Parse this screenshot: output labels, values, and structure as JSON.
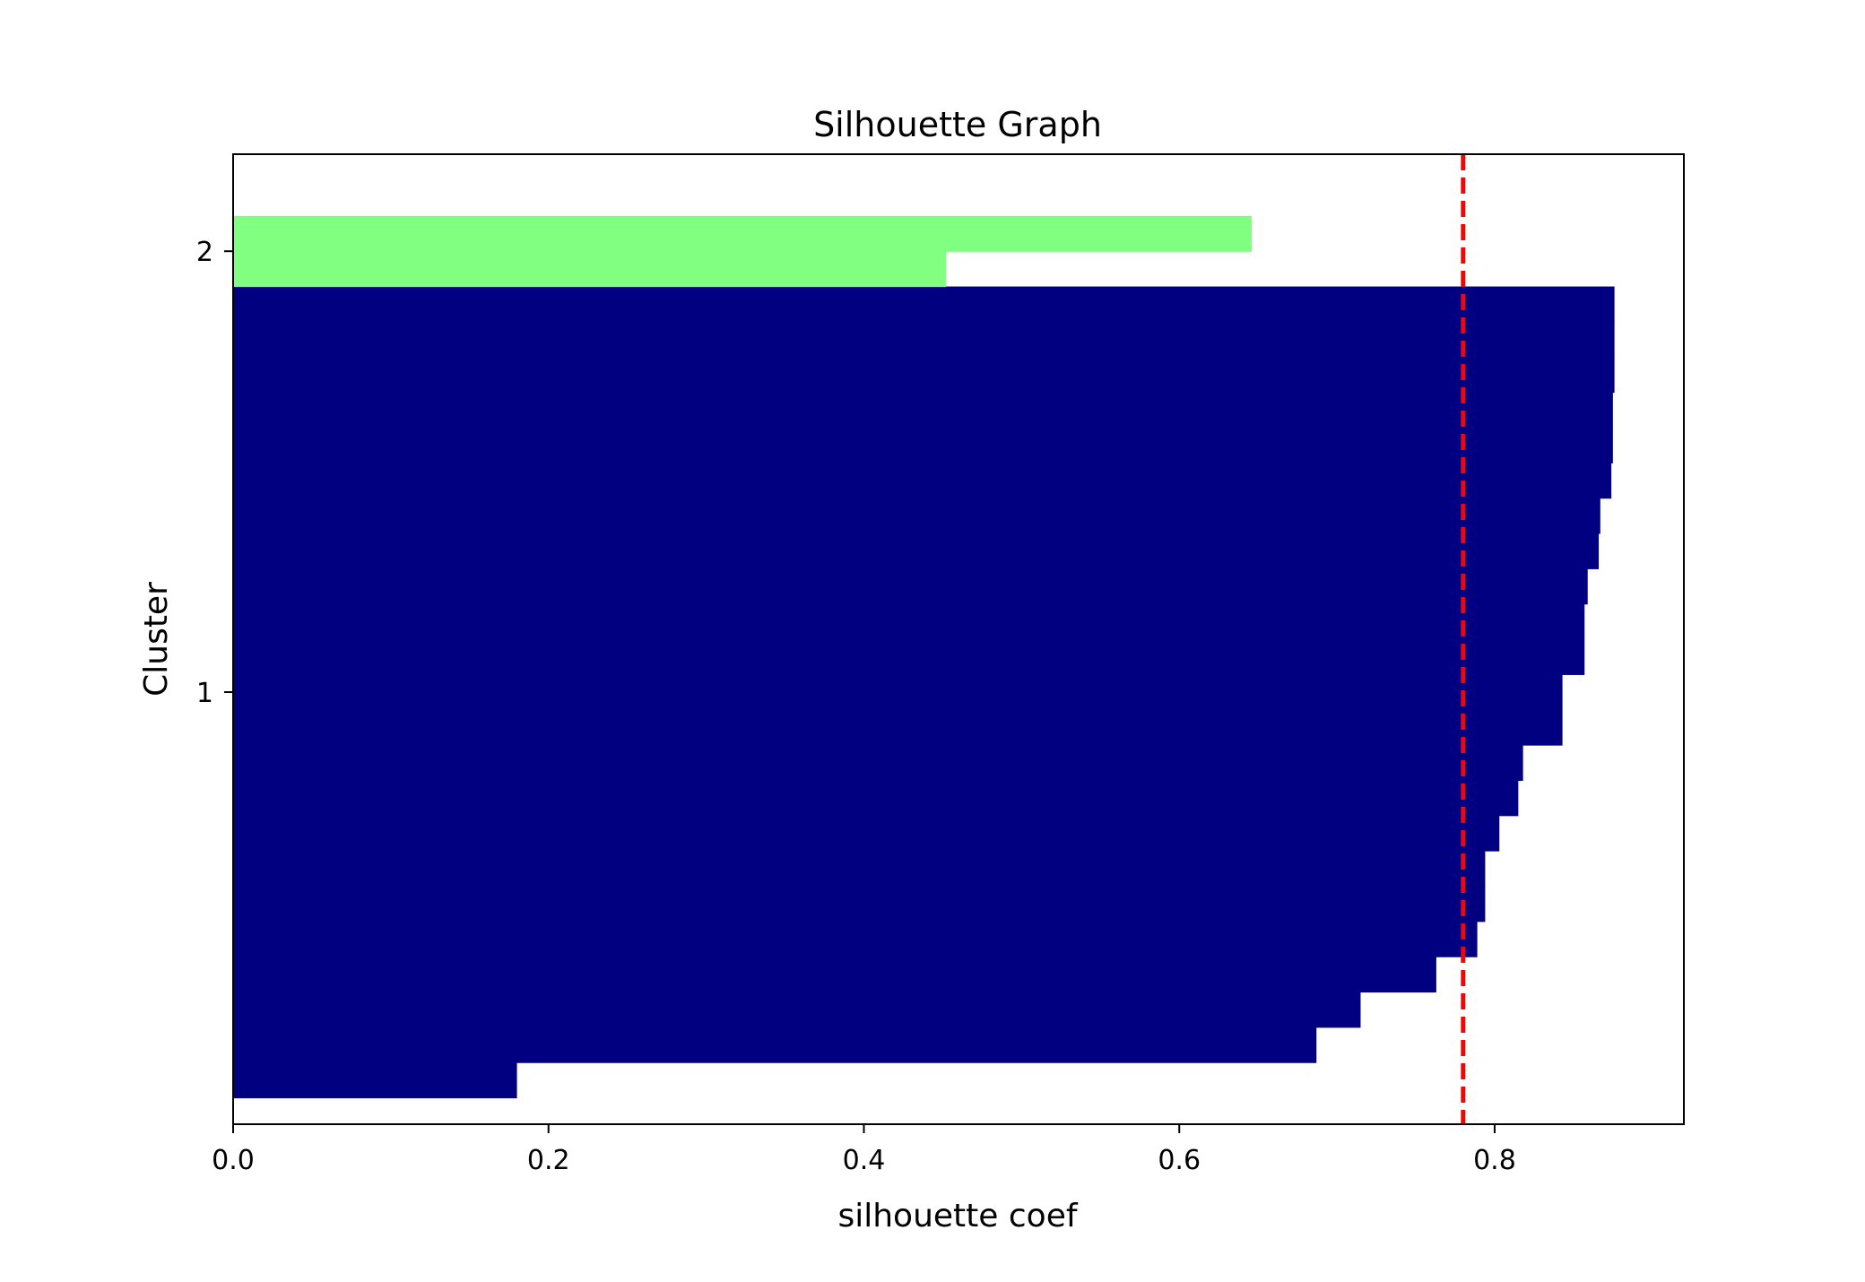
{
  "chart_data": {
    "type": "bar",
    "orientation": "horizontal",
    "title": "Silhouette Graph",
    "xlabel": "silhouette coef",
    "ylabel": "Cluster",
    "xlim": [
      0.0,
      0.92
    ],
    "ylim": [
      -0.06,
      2.14
    ],
    "x_ticks": [
      "0.0",
      "0.2",
      "0.4",
      "0.6",
      "0.8"
    ],
    "y_ticks": [
      "1",
      "2"
    ],
    "grid": false,
    "legend": "none",
    "average_line": {
      "value": 0.78,
      "style": "dashed",
      "color": "#ff0000"
    },
    "series": [
      {
        "name": "1",
        "color": "#000080",
        "values": [
          0.18,
          0.687,
          0.715,
          0.763,
          0.789,
          0.794,
          0.794,
          0.803,
          0.815,
          0.818,
          0.843,
          0.843,
          0.857,
          0.857,
          0.859,
          0.866,
          0.867,
          0.874,
          0.875,
          0.875,
          0.876,
          0.876,
          0.876
        ]
      },
      {
        "name": "2",
        "color": "#80ff80",
        "values": [
          0.452,
          0.646
        ]
      }
    ]
  }
}
